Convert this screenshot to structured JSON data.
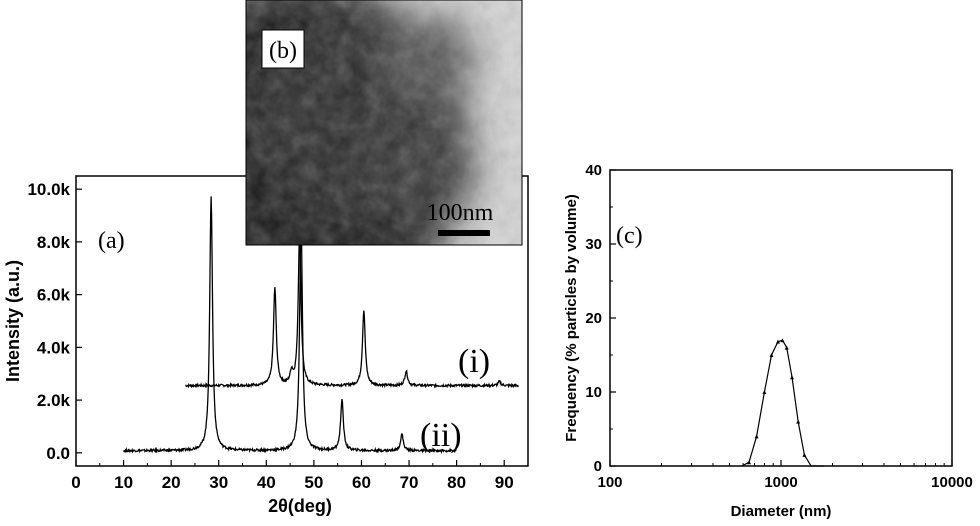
{
  "chart_data": [
    {
      "panel": "(a)",
      "type": "line",
      "xlabel": "2θ(deg)",
      "ylabel": "Intensity (a.u.)",
      "xlim": [
        0,
        95
      ],
      "ylim": [
        -500,
        10500
      ],
      "x_ticks": [
        0,
        10,
        20,
        30,
        40,
        50,
        60,
        70,
        80,
        90
      ],
      "y_ticks": [
        {
          "value": 0,
          "label": "0.0"
        },
        {
          "value": 2000,
          "label": "2.0k"
        },
        {
          "value": 4000,
          "label": "4.0k"
        },
        {
          "value": 6000,
          "label": "6.0k"
        },
        {
          "value": 8000,
          "label": "8.0k"
        },
        {
          "value": 10000,
          "label": "10.0k"
        }
      ],
      "series": [
        {
          "name": "(i)",
          "x_range": [
            23,
            93
          ],
          "baseline": 2550,
          "peaks": [
            {
              "x": 41.8,
              "y": 6250
            },
            {
              "x": 45.3,
              "y": 3000
            },
            {
              "x": 47.0,
              "y": 8400
            },
            {
              "x": 60.5,
              "y": 5400
            },
            {
              "x": 69.4,
              "y": 3100
            },
            {
              "x": 89.0,
              "y": 2700
            }
          ]
        },
        {
          "name": "(ii)",
          "x_range": [
            10,
            80
          ],
          "baseline": 80,
          "peaks": [
            {
              "x": 28.4,
              "y": 9750
            },
            {
              "x": 47.3,
              "y": 8900
            },
            {
              "x": 55.9,
              "y": 2000
            },
            {
              "x": 68.5,
              "y": 700
            }
          ]
        }
      ]
    },
    {
      "panel": "(c)",
      "type": "line",
      "xscale": "log",
      "xlabel": "Diameter (nm)",
      "ylabel": "Frequency (% particles by volume)",
      "xlim": [
        100,
        10000
      ],
      "ylim": [
        0,
        40
      ],
      "x_ticks": [
        100,
        1000,
        10000
      ],
      "y_ticks": [
        0,
        10,
        20,
        30,
        40
      ],
      "series": [
        {
          "x": [
            590,
            650,
            720,
            800,
            880,
            960,
            1020,
            1080,
            1160,
            1260,
            1370,
            1500,
            1640,
            1780
          ],
          "y": [
            0,
            0.5,
            4,
            10,
            15,
            16.8,
            17,
            16,
            12,
            6,
            1.5,
            0,
            0,
            0
          ]
        }
      ]
    }
  ],
  "inset_image": {
    "panel_label": "(b)",
    "scale_bar_label": "100nm",
    "type": "TEM micrograph"
  }
}
